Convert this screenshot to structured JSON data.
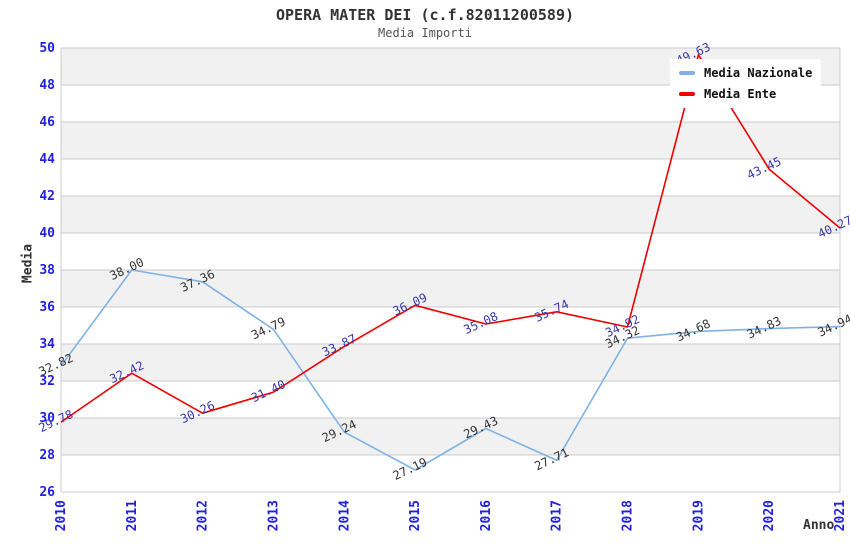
{
  "header": {
    "title": "OPERA MATER DEI (c.f.82011200589)",
    "subtitle": "Media Importi"
  },
  "legend": {
    "items": [
      {
        "label": "Media Nazionale",
        "color": "#7fb2e5"
      },
      {
        "label": "Media Ente",
        "color": "#ee0000"
      }
    ]
  },
  "chart_data": {
    "type": "line",
    "title": "OPERA MATER DEI (c.f.82011200589)",
    "subtitle": "Media Importi",
    "xlabel": "Anno",
    "ylabel": "Media",
    "ylim": [
      26,
      50
    ],
    "ytick_step": 2,
    "grid": true,
    "legend_position": "top-right",
    "gridline_color": "#cccccc",
    "band_colors": [
      "#f1f1f1",
      "#ffffff"
    ],
    "axis_tick_color": "#2121dd",
    "categories": [
      "2010",
      "2011",
      "2012",
      "2013",
      "2014",
      "2015",
      "2016",
      "2017",
      "2018",
      "2019",
      "2020",
      "2021"
    ],
    "series": [
      {
        "name": "Media Nazionale",
        "color": "#7fb2e5",
        "label_color": "#333333",
        "values": [
          32.82,
          38.0,
          37.36,
          34.79,
          29.24,
          27.19,
          29.43,
          27.71,
          34.32,
          34.68,
          34.83,
          34.94
        ]
      },
      {
        "name": "Media Ente",
        "color": "#ee0000",
        "label_color": "#3838aa",
        "values": [
          29.78,
          32.42,
          30.26,
          31.4,
          33.87,
          36.09,
          35.08,
          35.74,
          34.92,
          49.63,
          43.45,
          40.27
        ]
      }
    ]
  }
}
